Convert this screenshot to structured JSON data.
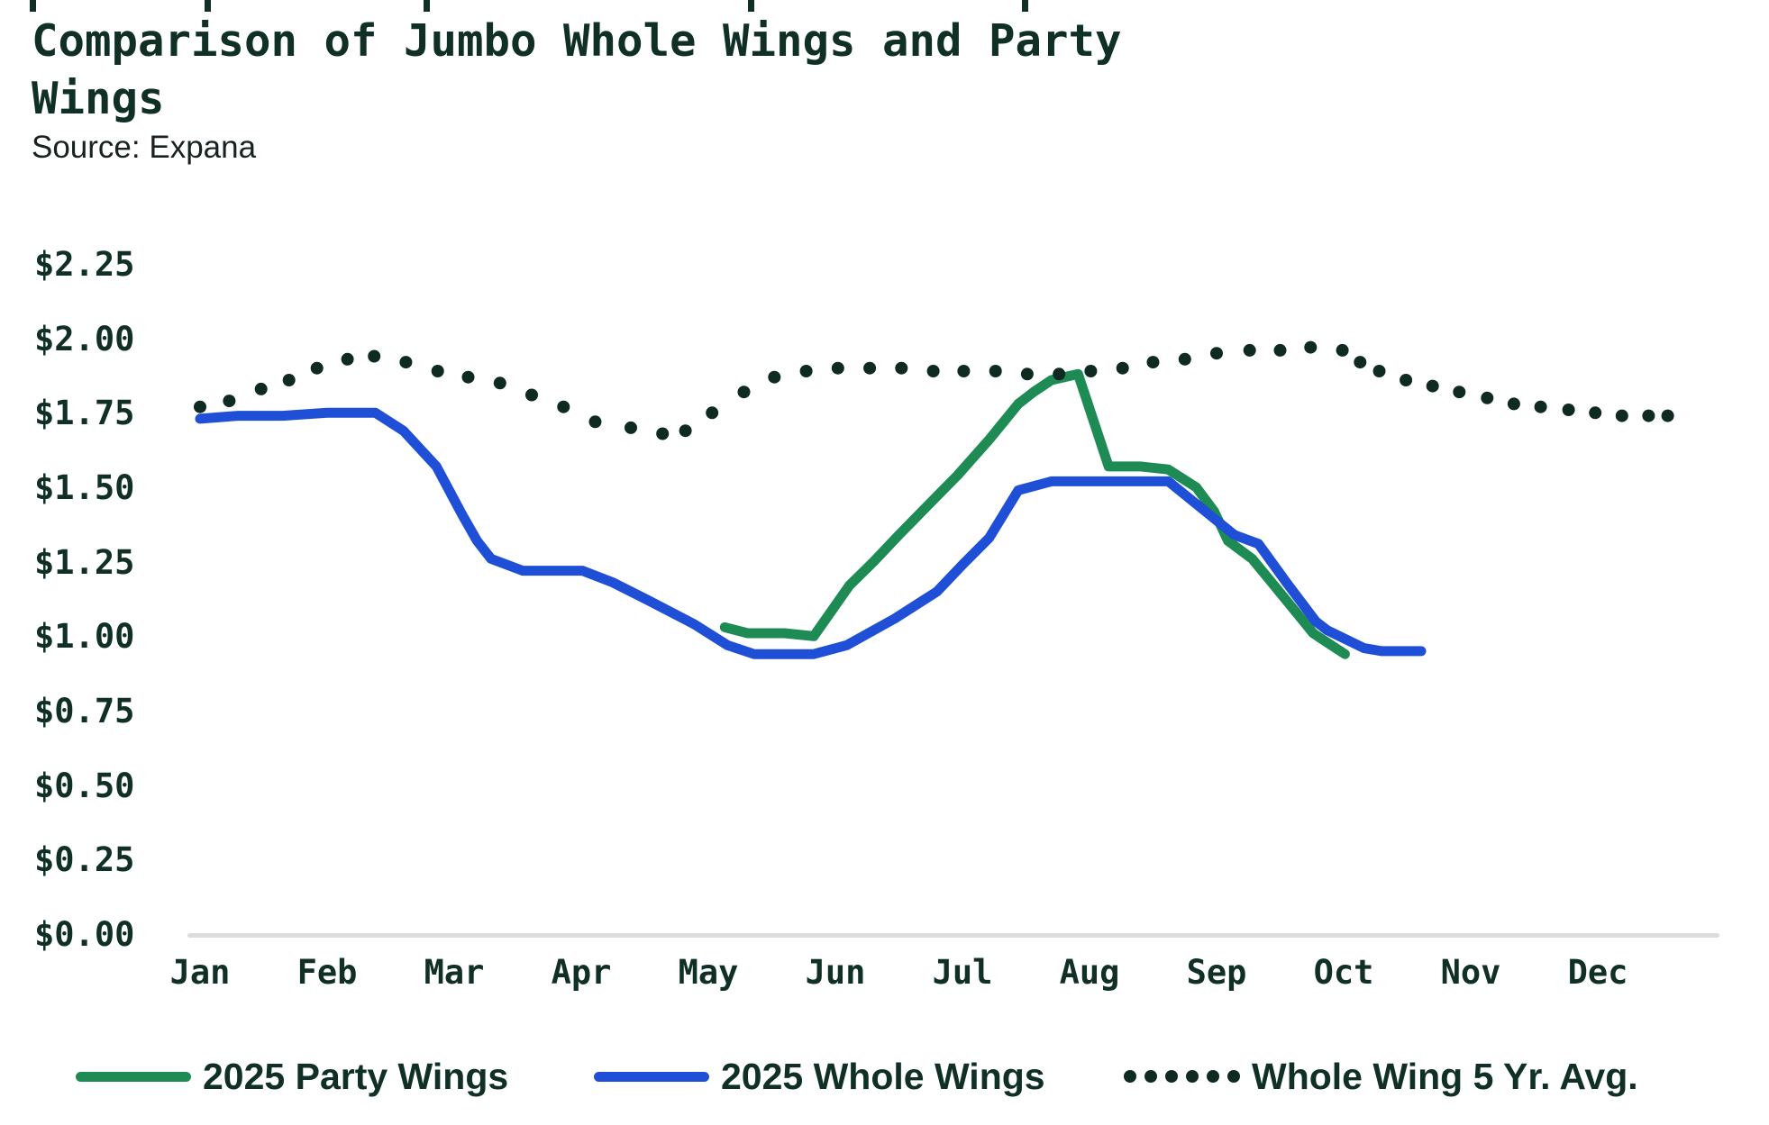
{
  "header": {
    "title": "Comparison of Jumbo Whole Wings and Party Wings",
    "source": "Source: Expana"
  },
  "colors": {
    "ink": "#103026",
    "dots": "#0e2a21",
    "party_green": "#1d8b53",
    "whole_blue": "#1e4fd6",
    "axis_gray": "#dcdcdc",
    "background": "#ffffff"
  },
  "decor": {
    "top_marks_x": [
      33,
      227,
      470,
      830,
      1134
    ]
  },
  "chart_data": {
    "type": "line",
    "title": "Comparison of Jumbo Whole Wings and Party Wings",
    "source": "Source: Expana",
    "units": "USD",
    "x_axis": {
      "tick_labels": [
        "Jan",
        "Feb",
        "Mar",
        "Apr",
        "May",
        "Jun",
        "Jul",
        "Aug",
        "Sep",
        "Oct",
        "Nov",
        "Dec"
      ],
      "tick_values": [
        0,
        1,
        2,
        3,
        4,
        5,
        6,
        7,
        8,
        9,
        10,
        11
      ],
      "range_months": [
        0,
        12.2
      ],
      "grid": false
    },
    "y_axis": {
      "tick_labels": [
        "$0.00",
        "$0.25",
        "$0.50",
        "$0.75",
        "$1.00",
        "$1.25",
        "$1.50",
        "$1.75",
        "$2.00",
        "$2.25"
      ],
      "tick_values": [
        0,
        0.25,
        0.5,
        0.75,
        1.0,
        1.25,
        1.5,
        1.75,
        2.0,
        2.25
      ],
      "range": [
        0,
        2.25
      ],
      "grid": false
    },
    "legend_position": "bottom",
    "series": [
      {
        "name": "2025 Party Wings",
        "style": "solid",
        "color_key": "party_green",
        "points": [
          [
            4.13,
            1.03
          ],
          [
            4.31,
            1.01
          ],
          [
            4.6,
            1.01
          ],
          [
            4.83,
            1.0
          ],
          [
            5.11,
            1.17
          ],
          [
            5.3,
            1.25
          ],
          [
            5.5,
            1.34
          ],
          [
            5.73,
            1.44
          ],
          [
            5.96,
            1.54
          ],
          [
            6.21,
            1.66
          ],
          [
            6.44,
            1.78
          ],
          [
            6.56,
            1.82
          ],
          [
            6.7,
            1.86
          ],
          [
            6.91,
            1.88
          ],
          [
            7.15,
            1.57
          ],
          [
            7.4,
            1.57
          ],
          [
            7.62,
            1.56
          ],
          [
            7.84,
            1.5
          ],
          [
            7.98,
            1.42
          ],
          [
            8.09,
            1.32
          ],
          [
            8.28,
            1.26
          ],
          [
            8.55,
            1.12
          ],
          [
            8.76,
            1.01
          ],
          [
            8.83,
            0.99
          ],
          [
            9.01,
            0.94
          ]
        ]
      },
      {
        "name": "2025 Whole Wings",
        "style": "solid",
        "color_key": "whole_blue",
        "points": [
          [
            0.0,
            1.73
          ],
          [
            0.3,
            1.74
          ],
          [
            0.65,
            1.74
          ],
          [
            1.0,
            1.75
          ],
          [
            1.38,
            1.75
          ],
          [
            1.6,
            1.69
          ],
          [
            1.86,
            1.57
          ],
          [
            2.06,
            1.41
          ],
          [
            2.18,
            1.32
          ],
          [
            2.29,
            1.26
          ],
          [
            2.54,
            1.22
          ],
          [
            2.8,
            1.22
          ],
          [
            3.01,
            1.22
          ],
          [
            3.25,
            1.18
          ],
          [
            3.53,
            1.12
          ],
          [
            3.89,
            1.04
          ],
          [
            4.15,
            0.97
          ],
          [
            4.36,
            0.94
          ],
          [
            4.6,
            0.94
          ],
          [
            4.83,
            0.94
          ],
          [
            5.09,
            0.97
          ],
          [
            5.47,
            1.06
          ],
          [
            5.8,
            1.15
          ],
          [
            6.0,
            1.24
          ],
          [
            6.21,
            1.33
          ],
          [
            6.44,
            1.49
          ],
          [
            6.7,
            1.52
          ],
          [
            7.0,
            1.52
          ],
          [
            7.3,
            1.52
          ],
          [
            7.62,
            1.52
          ],
          [
            7.91,
            1.42
          ],
          [
            8.14,
            1.34
          ],
          [
            8.33,
            1.31
          ],
          [
            8.55,
            1.18
          ],
          [
            8.78,
            1.05
          ],
          [
            8.87,
            1.02
          ],
          [
            9.16,
            0.96
          ],
          [
            9.3,
            0.95
          ],
          [
            9.61,
            0.95
          ]
        ]
      },
      {
        "name": "Whole Wing 5 Yr. Avg.",
        "style": "dotted",
        "color_key": "dots",
        "points": [
          [
            0.0,
            1.77
          ],
          [
            0.23,
            1.79
          ],
          [
            0.48,
            1.83
          ],
          [
            0.7,
            1.86
          ],
          [
            0.92,
            1.9
          ],
          [
            1.16,
            1.93
          ],
          [
            1.37,
            1.94
          ],
          [
            1.62,
            1.92
          ],
          [
            1.87,
            1.89
          ],
          [
            2.11,
            1.87
          ],
          [
            2.36,
            1.85
          ],
          [
            2.61,
            1.81
          ],
          [
            2.86,
            1.77
          ],
          [
            3.11,
            1.72
          ],
          [
            3.39,
            1.7
          ],
          [
            3.64,
            1.68
          ],
          [
            3.82,
            1.69
          ],
          [
            4.03,
            1.75
          ],
          [
            4.28,
            1.82
          ],
          [
            4.52,
            1.87
          ],
          [
            4.77,
            1.89
          ],
          [
            5.02,
            1.9
          ],
          [
            5.27,
            1.9
          ],
          [
            5.52,
            1.9
          ],
          [
            5.77,
            1.89
          ],
          [
            6.01,
            1.89
          ],
          [
            6.26,
            1.89
          ],
          [
            6.51,
            1.88
          ],
          [
            6.76,
            1.88
          ],
          [
            7.01,
            1.89
          ],
          [
            7.26,
            1.9
          ],
          [
            7.5,
            1.92
          ],
          [
            7.75,
            1.93
          ],
          [
            8.0,
            1.95
          ],
          [
            8.26,
            1.96
          ],
          [
            8.5,
            1.96
          ],
          [
            8.74,
            1.97
          ],
          [
            8.99,
            1.96
          ],
          [
            9.13,
            1.92
          ],
          [
            9.28,
            1.89
          ],
          [
            9.49,
            1.86
          ],
          [
            9.7,
            1.84
          ],
          [
            9.91,
            1.82
          ],
          [
            10.13,
            1.8
          ],
          [
            10.34,
            1.78
          ],
          [
            10.55,
            1.77
          ],
          [
            10.77,
            1.76
          ],
          [
            10.98,
            1.75
          ],
          [
            11.19,
            1.74
          ],
          [
            11.4,
            1.74
          ],
          [
            11.55,
            1.74
          ]
        ]
      }
    ]
  }
}
